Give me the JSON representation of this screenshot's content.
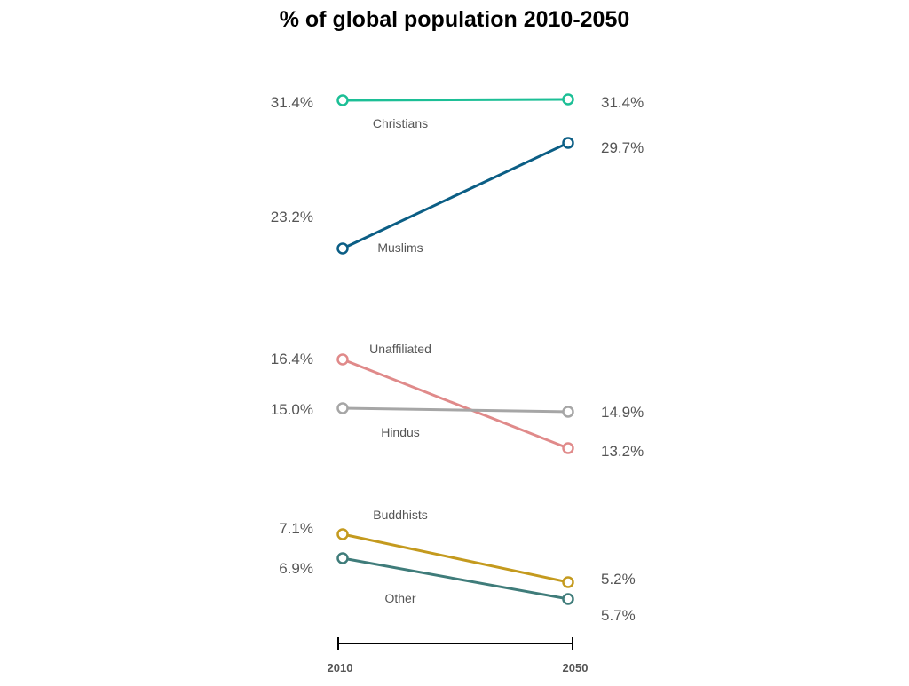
{
  "chart_data": {
    "type": "line",
    "title": "% of global population 2010-2050",
    "xlabel": "",
    "ylabel": "",
    "categories": [
      "2010",
      "2050"
    ],
    "series": [
      {
        "name": "Christians",
        "values": [
          31.4,
          31.4
        ],
        "value_labels": [
          "31.4%",
          "31.4%"
        ],
        "color": "#1cbf96"
      },
      {
        "name": "Muslims",
        "values": [
          23.2,
          29.7
        ],
        "value_labels": [
          "23.2%",
          "29.7%"
        ],
        "color": "#0b5e85"
      },
      {
        "name": "Unaffiliated",
        "values": [
          16.4,
          13.2
        ],
        "value_labels": [
          "16.4%",
          "13.2%"
        ],
        "color": "#e08a8a"
      },
      {
        "name": "Hindus",
        "values": [
          15.0,
          14.9
        ],
        "value_labels": [
          "15.0%",
          "14.9%"
        ],
        "color": "#a6a6a6"
      },
      {
        "name": "Buddhists",
        "values": [
          7.1,
          5.2
        ],
        "value_labels": [
          "7.1%",
          "5.2%"
        ],
        "color": "#c49a1e"
      },
      {
        "name": "Other",
        "values": [
          6.9,
          5.7
        ],
        "value_labels": [
          "6.9%",
          "5.7%"
        ],
        "color": "#3f7c7a"
      }
    ],
    "grid": false,
    "legend": "none",
    "note": "values as printed in the figure; points are positioned to match the figure's vertical layout"
  }
}
